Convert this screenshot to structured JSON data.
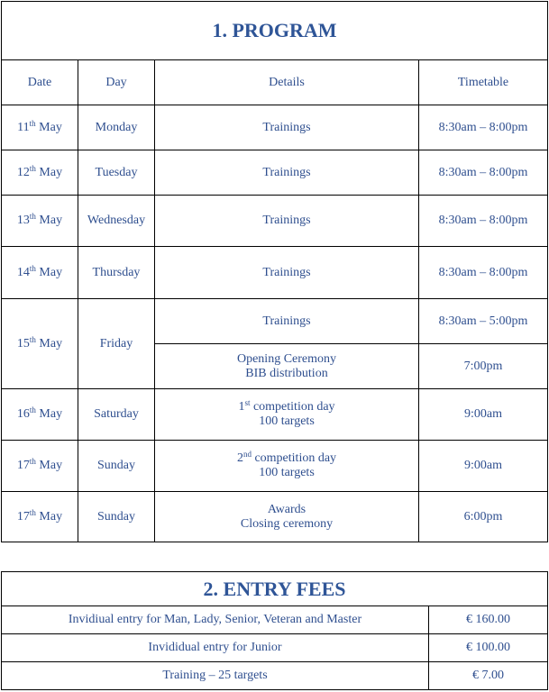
{
  "program": {
    "title": "1. PROGRAM",
    "headers": {
      "date": "Date",
      "day": "Day",
      "details": "Details",
      "timetable": "Timetable"
    },
    "rows": [
      {
        "day_num": "11",
        "suffix": "th",
        "month": "May",
        "day": "Monday",
        "details": [
          "Trainings"
        ],
        "time": "8:30am – 8:00pm"
      },
      {
        "day_num": "12",
        "suffix": "th",
        "month": "May",
        "day": "Tuesday",
        "details": [
          "Trainings"
        ],
        "time": "8:30am – 8:00pm"
      },
      {
        "day_num": "13",
        "suffix": "th",
        "month": "May",
        "day": "Wednesday",
        "details": [
          "Trainings"
        ],
        "time": "8:30am – 8:00pm"
      },
      {
        "day_num": "14",
        "suffix": "th",
        "month": "May",
        "day": "Thursday",
        "details": [
          "Trainings"
        ],
        "time": "8:30am – 8:00pm"
      },
      {
        "day_num": "15",
        "suffix": "th",
        "month": "May",
        "day": "Friday",
        "sub": [
          {
            "details": "Trainings",
            "time": "8:30am – 5:00pm"
          },
          {
            "details_line1": "Opening Ceremony",
            "details_line2": "BIB distribution",
            "time": "7:00pm"
          }
        ]
      },
      {
        "day_num": "16",
        "suffix": "th",
        "month": "May",
        "day": "Saturday",
        "ord": "1",
        "ord_suffix": "st",
        "line1": "competition day",
        "line2": "100 targets",
        "time": "9:00am"
      },
      {
        "day_num": "17",
        "suffix": "th",
        "month": "May",
        "day": "Sunday",
        "ord": "2",
        "ord_suffix": "nd",
        "line1": "competition day",
        "line2": "100 targets",
        "time": "9:00am"
      },
      {
        "day_num": "17",
        "suffix": "th",
        "month": "May",
        "day": "Sunday",
        "line1": "Awards",
        "line2": "Closing ceremony",
        "time": "6:00pm"
      }
    ]
  },
  "fees": {
    "title": "2. ENTRY FEES",
    "rows": [
      {
        "label": "Invidiual entry for Man, Lady, Senior, Veteran and Master",
        "price": "€ 160.00"
      },
      {
        "label": "Invididual entry for Junior",
        "price": "€ 100.00"
      },
      {
        "label": "Training – 25 targets",
        "price": "€ 7.00"
      }
    ]
  }
}
